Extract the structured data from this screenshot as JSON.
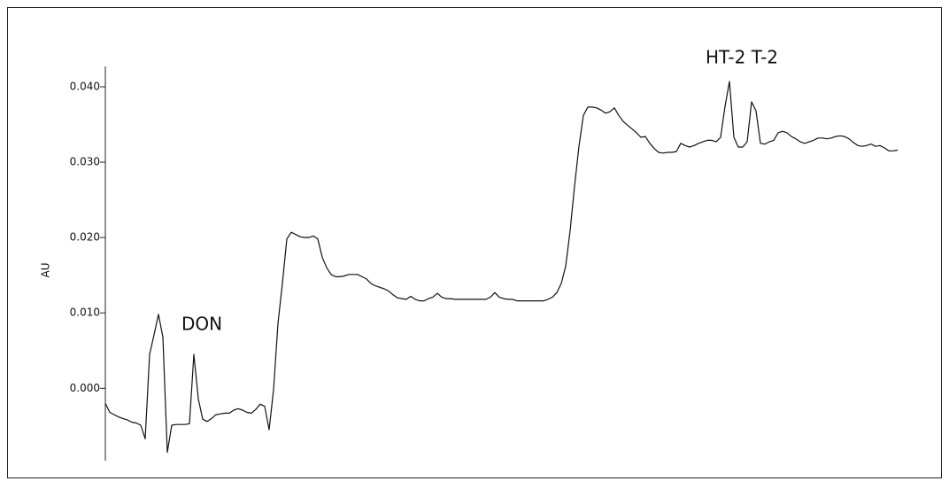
{
  "chart_data": {
    "type": "line",
    "ylabel": "AU",
    "color": "#111111",
    "annotations": [
      "DON",
      "HT-2 T-2"
    ],
    "ylim": [
      -0.0096,
      0.0427
    ],
    "yticks": [
      {
        "value": 0,
        "label": "0.000"
      },
      {
        "value": 0.01,
        "label": "0.010"
      },
      {
        "value": 0.02,
        "label": "0.020"
      },
      {
        "value": 0.03,
        "label": "0.030"
      },
      {
        "value": 0.04,
        "label": "0.040"
      }
    ],
    "values": [
      -0.002,
      -0.0032,
      -0.0035,
      -0.0038,
      -0.004,
      -0.0042,
      -0.0045,
      -0.0046,
      -0.0049,
      -0.0067,
      0.0045,
      0.0071,
      0.0098,
      0.0068,
      -0.0085,
      -0.0049,
      -0.0048,
      -0.0048,
      -0.0048,
      -0.0047,
      0.0045,
      -0.0014,
      -0.0041,
      -0.0044,
      -0.004,
      -0.0035,
      -0.0034,
      -0.0033,
      -0.0033,
      -0.0029,
      -0.0027,
      -0.0029,
      -0.0032,
      -0.0033,
      -0.0028,
      -0.0021,
      -0.0024,
      -0.0055,
      -0.0002,
      0.0086,
      0.0139,
      0.0198,
      0.0207,
      0.0204,
      0.0201,
      0.02,
      0.02,
      0.0202,
      0.0198,
      0.0174,
      0.016,
      0.0151,
      0.0148,
      0.0148,
      0.0149,
      0.0151,
      0.0151,
      0.0151,
      0.0148,
      0.0145,
      0.0139,
      0.0136,
      0.0134,
      0.0132,
      0.0129,
      0.0124,
      0.012,
      0.0119,
      0.0118,
      0.0122,
      0.0118,
      0.0116,
      0.0116,
      0.0119,
      0.0121,
      0.0126,
      0.0121,
      0.0119,
      0.0119,
      0.0118,
      0.0118,
      0.0118,
      0.0118,
      0.0118,
      0.0118,
      0.0118,
      0.0118,
      0.0121,
      0.0127,
      0.0121,
      0.0119,
      0.0118,
      0.0118,
      0.0116,
      0.0116,
      0.0116,
      0.0116,
      0.0116,
      0.0116,
      0.0116,
      0.0118,
      0.0121,
      0.0127,
      0.0139,
      0.0162,
      0.0209,
      0.0268,
      0.0321,
      0.0362,
      0.0373,
      0.0373,
      0.0372,
      0.0369,
      0.0365,
      0.0367,
      0.0372,
      0.0362,
      0.0354,
      0.0349,
      0.0344,
      0.0339,
      0.0333,
      0.0334,
      0.0325,
      0.0318,
      0.0313,
      0.0312,
      0.0313,
      0.0313,
      0.0314,
      0.0325,
      0.0322,
      0.032,
      0.0322,
      0.0325,
      0.0327,
      0.0329,
      0.0329,
      0.0327,
      0.0333,
      0.0374,
      0.0407,
      0.0333,
      0.032,
      0.032,
      0.0327,
      0.038,
      0.0368,
      0.0325,
      0.0324,
      0.0327,
      0.0329,
      0.0339,
      0.0341,
      0.0339,
      0.0334,
      0.0331,
      0.0327,
      0.0325,
      0.0327,
      0.0329,
      0.0332,
      0.0332,
      0.0331,
      0.0332,
      0.0334,
      0.0335,
      0.0334,
      0.0331,
      0.0326,
      0.0322,
      0.0321,
      0.0322,
      0.0324,
      0.0321,
      0.0322,
      0.0319,
      0.0315,
      0.0315,
      0.0316
    ]
  }
}
